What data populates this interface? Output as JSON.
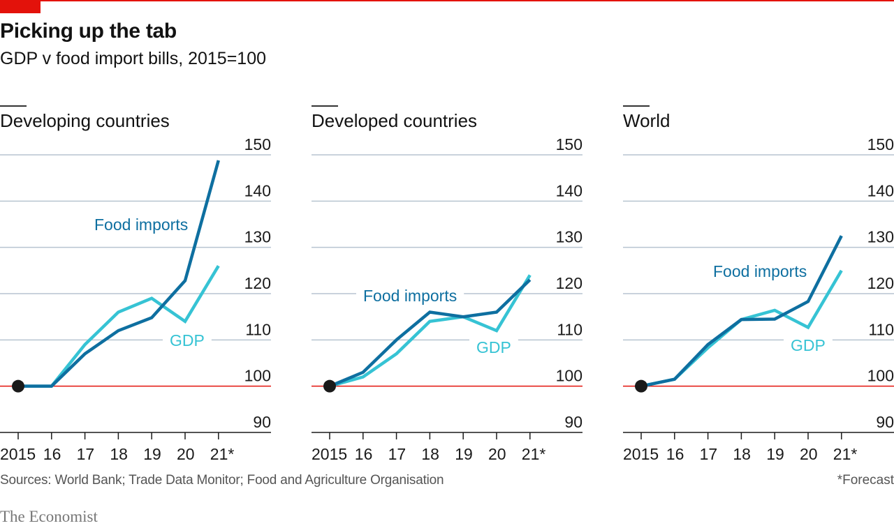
{
  "header": {
    "title": "Picking up the tab",
    "subtitle": "GDP v food import bills, 2015=100"
  },
  "colors": {
    "accent_red": "#e3120b",
    "food_imports": "#0e6fa0",
    "gdp": "#36c3d4",
    "gridline": "#b7c4d0",
    "baseline_100": "#e3120b",
    "axis": "#1a1a1a",
    "start_dot": "#1a1a1a"
  },
  "footer": {
    "source": "Sources: World Bank; Trade Data Monitor; Food and Agriculture Organisation",
    "footnote": "*Forecast",
    "brand": "The Economist"
  },
  "chart_data": [
    {
      "type": "line",
      "title": "Developing countries",
      "x": [
        "2015",
        "16",
        "17",
        "18",
        "19",
        "20",
        "21*"
      ],
      "ylim": [
        90,
        150
      ],
      "yticks": [
        90,
        100,
        110,
        120,
        130,
        140,
        150
      ],
      "grid": true,
      "series": [
        {
          "name": "Food imports",
          "values": [
            100,
            100,
            107,
            112,
            114.8,
            122.8,
            148.8
          ]
        },
        {
          "name": "GDP",
          "values": [
            100,
            100,
            109,
            116,
            119,
            114,
            126
          ]
        }
      ],
      "annotations": [
        {
          "text": "Food imports",
          "series": "Food imports"
        },
        {
          "text": "GDP",
          "series": "GDP"
        }
      ]
    },
    {
      "type": "line",
      "title": "Developed countries",
      "x": [
        "2015",
        "16",
        "17",
        "18",
        "19",
        "20",
        "21*"
      ],
      "ylim": [
        90,
        150
      ],
      "yticks": [
        90,
        100,
        110,
        120,
        130,
        140,
        150
      ],
      "grid": true,
      "series": [
        {
          "name": "Food imports",
          "values": [
            100,
            103,
            110,
            116,
            115,
            116,
            123
          ]
        },
        {
          "name": "GDP",
          "values": [
            100,
            102,
            107,
            114,
            115,
            112,
            124
          ]
        }
      ],
      "annotations": [
        {
          "text": "Food imports",
          "series": "Food imports"
        },
        {
          "text": "GDP",
          "series": "GDP"
        }
      ]
    },
    {
      "type": "line",
      "title": "World",
      "x": [
        "2015",
        "16",
        "17",
        "18",
        "19",
        "20",
        "21*"
      ],
      "ylim": [
        90,
        150
      ],
      "yticks": [
        90,
        100,
        110,
        120,
        130,
        140,
        150
      ],
      "grid": true,
      "series": [
        {
          "name": "Food imports",
          "values": [
            100,
            101.5,
            109,
            114.4,
            114.5,
            118.3,
            132.5
          ]
        },
        {
          "name": "GDP",
          "values": [
            100,
            101.5,
            108.3,
            114.4,
            116.4,
            112.7,
            125
          ]
        }
      ],
      "annotations": [
        {
          "text": "Food imports",
          "series": "Food imports"
        },
        {
          "text": "GDP",
          "series": "GDP"
        }
      ]
    }
  ]
}
